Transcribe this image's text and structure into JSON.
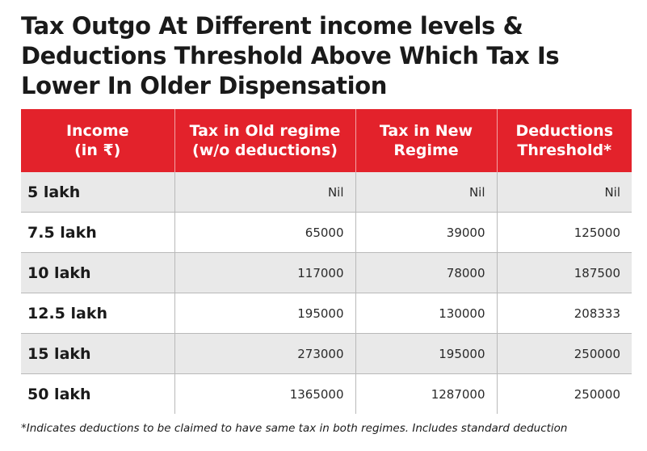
{
  "title_lines": [
    "Tax Outgo At Different income levels &",
    "Deductions Threshold Above Which Tax Is",
    "Lower In Older Dispensation"
  ],
  "chart_data": {
    "type": "table",
    "columns": [
      [
        "Income",
        "(in ₹)"
      ],
      [
        "Tax in Old regime",
        "(w/o deductions)"
      ],
      [
        "Tax in New",
        "Regime"
      ],
      [
        "Deductions",
        "Threshold*"
      ]
    ],
    "rows": [
      [
        "5 lakh",
        "Nil",
        "Nil",
        "Nil"
      ],
      [
        "7.5 lakh",
        "65000",
        "39000",
        "125000"
      ],
      [
        "10 lakh",
        "117000",
        "78000",
        "187500"
      ],
      [
        "12.5 lakh",
        "195000",
        "130000",
        "208333"
      ],
      [
        "15 lakh",
        "273000",
        "195000",
        "250000"
      ],
      [
        "50 lakh",
        "1365000",
        "1287000",
        "250000"
      ]
    ]
  },
  "colors": {
    "header_bg": "#e3222b",
    "header_text": "#ffffff",
    "row_shade": "#e9e9e9"
  },
  "footnote": "*Indicates deductions to be claimed to have same tax in both regimes. Includes standard deduction"
}
